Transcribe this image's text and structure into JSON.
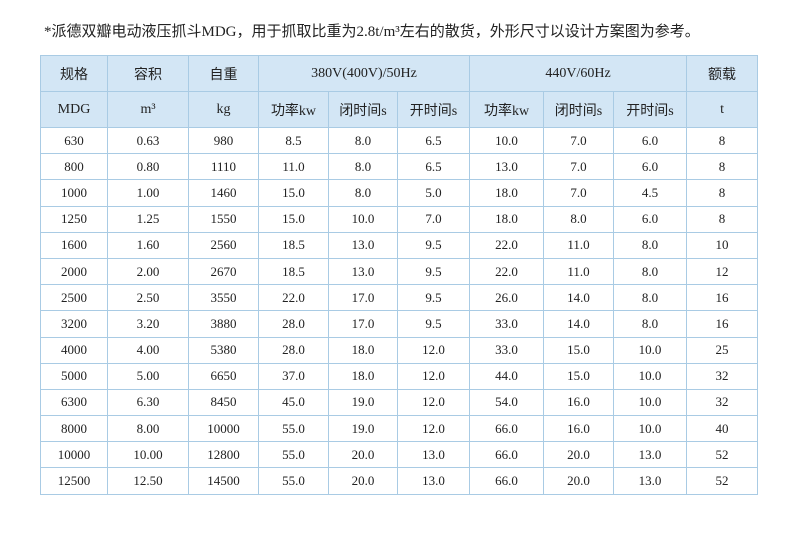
{
  "title": "*派德双瓣电动液压抓斗MDG，用于抓取比重为2.8t/m³左右的散货，外形尺寸以设计方案图为参考。",
  "table": {
    "header_top": [
      "规格",
      "容积",
      "自重",
      "380V(400V)/50Hz",
      "440V/60Hz",
      "额载"
    ],
    "header_sub": [
      "MDG",
      "m³",
      "kg",
      "功率kw",
      "闭时间s",
      "开时间s",
      "功率kw",
      "闭时间s",
      "开时间s",
      "t"
    ],
    "rows": [
      [
        "630",
        "0.63",
        "980",
        "8.5",
        "8.0",
        "6.5",
        "10.0",
        "7.0",
        "6.0",
        "8"
      ],
      [
        "800",
        "0.80",
        "1110",
        "11.0",
        "8.0",
        "6.5",
        "13.0",
        "7.0",
        "6.0",
        "8"
      ],
      [
        "1000",
        "1.00",
        "1460",
        "15.0",
        "8.0",
        "5.0",
        "18.0",
        "7.0",
        "4.5",
        "8"
      ],
      [
        "1250",
        "1.25",
        "1550",
        "15.0",
        "10.0",
        "7.0",
        "18.0",
        "8.0",
        "6.0",
        "8"
      ],
      [
        "1600",
        "1.60",
        "2560",
        "18.5",
        "13.0",
        "9.5",
        "22.0",
        "11.0",
        "8.0",
        "10"
      ],
      [
        "2000",
        "2.00",
        "2670",
        "18.5",
        "13.0",
        "9.5",
        "22.0",
        "11.0",
        "8.0",
        "12"
      ],
      [
        "2500",
        "2.50",
        "3550",
        "22.0",
        "17.0",
        "9.5",
        "26.0",
        "14.0",
        "8.0",
        "16"
      ],
      [
        "3200",
        "3.20",
        "3880",
        "28.0",
        "17.0",
        "9.5",
        "33.0",
        "14.0",
        "8.0",
        "16"
      ],
      [
        "4000",
        "4.00",
        "5380",
        "28.0",
        "18.0",
        "12.0",
        "33.0",
        "15.0",
        "10.0",
        "25"
      ],
      [
        "5000",
        "5.00",
        "6650",
        "37.0",
        "18.0",
        "12.0",
        "44.0",
        "15.0",
        "10.0",
        "32"
      ],
      [
        "6300",
        "6.30",
        "8450",
        "45.0",
        "19.0",
        "12.0",
        "54.0",
        "16.0",
        "10.0",
        "32"
      ],
      [
        "8000",
        "8.00",
        "10000",
        "55.0",
        "19.0",
        "12.0",
        "66.0",
        "16.0",
        "10.0",
        "40"
      ],
      [
        "10000",
        "10.00",
        "12800",
        "55.0",
        "20.0",
        "13.0",
        "66.0",
        "20.0",
        "13.0",
        "52"
      ],
      [
        "12500",
        "12.50",
        "14500",
        "55.0",
        "20.0",
        "13.0",
        "66.0",
        "20.0",
        "13.0",
        "52"
      ]
    ]
  }
}
